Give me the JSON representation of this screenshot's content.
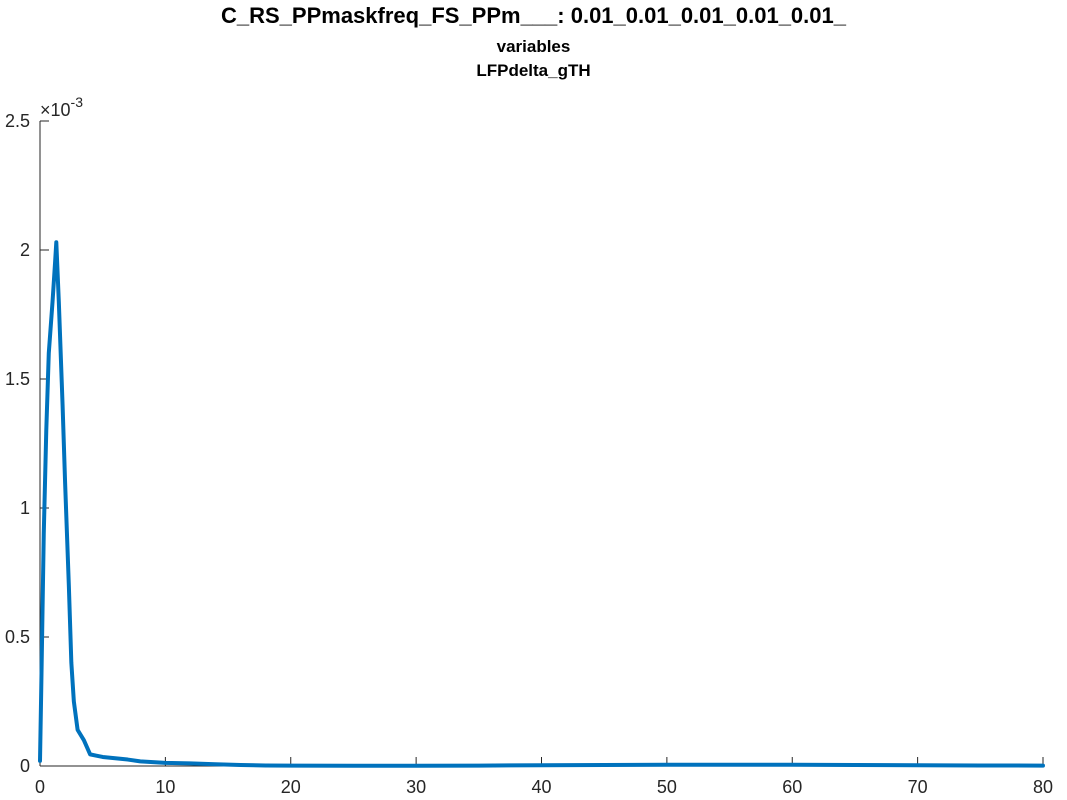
{
  "chart_data": {
    "type": "line",
    "title": "C_RS_PPmaskfreq_FS_PPm___: 0.01_0.01_0.01_0.01_0.01_",
    "subtitles": [
      "variables",
      "LFPdelta_gTH"
    ],
    "xlabel": "",
    "ylabel": "",
    "xlim": [
      0,
      80
    ],
    "ylim": [
      0,
      0.0025
    ],
    "x_ticks": [
      0,
      10,
      20,
      30,
      40,
      50,
      60,
      70,
      80
    ],
    "x_tick_labels": [
      "0",
      "10",
      "20",
      "30",
      "40",
      "50",
      "60",
      "70",
      "80"
    ],
    "y_ticks": [
      0,
      0.0005,
      0.001,
      0.0015,
      0.002,
      0.0025
    ],
    "y_tick_labels": [
      "0",
      "0.5",
      "1",
      "1.5",
      "2",
      "2.5"
    ],
    "y_exponent_label": "×10",
    "y_exponent_power": "-3",
    "grid": false,
    "series": [
      {
        "color": "#0072bd",
        "x": [
          0,
          0.1,
          0.3,
          0.5,
          0.7,
          1.0,
          1.2,
          1.3,
          1.5,
          1.8,
          2.0,
          2.3,
          2.5,
          2.7,
          3.0,
          3.5,
          4.0,
          4.5,
          5.0,
          6.0,
          7.0,
          8.0,
          9.0,
          10.0,
          12.0,
          14.0,
          16.0,
          18.0,
          20.0,
          25.0,
          30.0,
          35.0,
          40.0,
          45.0,
          50.0,
          55.0,
          60.0,
          65.0,
          70.0,
          75.0,
          80.0
        ],
        "y": [
          2e-05,
          0.0003,
          0.0009,
          0.0013,
          0.0016,
          0.0018,
          0.00195,
          0.00203,
          0.0018,
          0.0014,
          0.0011,
          0.0007,
          0.0004,
          0.00025,
          0.00014,
          0.0001,
          4.5e-05,
          4e-05,
          3.5e-05,
          3e-05,
          2.5e-05,
          1.8e-05,
          1.5e-05,
          1.2e-05,
          1e-05,
          7e-06,
          4e-06,
          2e-06,
          1.5e-06,
          1e-06,
          1e-06,
          1.5e-06,
          3e-06,
          4e-06,
          5e-06,
          5e-06,
          5e-06,
          4e-06,
          3e-06,
          2e-06,
          1.5e-06
        ]
      }
    ]
  }
}
